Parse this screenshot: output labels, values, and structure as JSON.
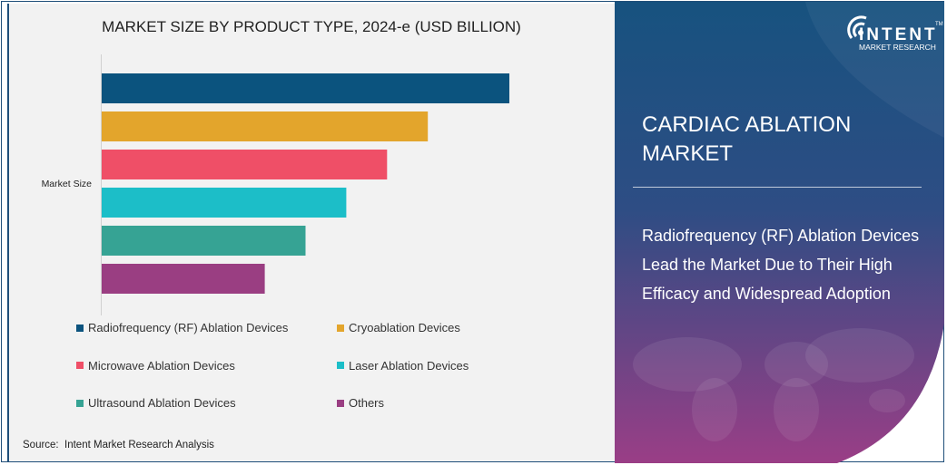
{
  "chart_data": {
    "type": "bar",
    "orientation": "horizontal",
    "title": "MARKET SIZE BY PRODUCT TYPE, 2024-e (USD BILLION)",
    "ylabel": "Market Size",
    "xlim": [
      0,
      100
    ],
    "grid": false,
    "legend_position": "bottom",
    "categories": [
      "Radiofrequency (RF) Ablation Devices",
      "Cryoablation Devices",
      "Microwave Ablation Devices",
      "Laser Ablation Devices",
      "Ultrasound Ablation Devices",
      "Others"
    ],
    "values": [
      100,
      80,
      70,
      60,
      50,
      40
    ],
    "colors": [
      "#0b537e",
      "#e3a52c",
      "#ef4f67",
      "#1cbec8",
      "#36a394",
      "#9a3e82"
    ]
  },
  "source": "Source:  Intent Market Research Analysis",
  "panel": {
    "market_title": "CARDIAC ABLATION MARKET",
    "headline": "Radiofrequency (RF) Ablation Devices Lead the Market Due to Their High Efficacy and Widespread Adoption",
    "logo": {
      "name": "INTENT",
      "tagline": "MARKET RESEARCH",
      "tm": "TM"
    },
    "colors": {
      "top": "#17527f",
      "bottom": "#9a3e86"
    }
  }
}
